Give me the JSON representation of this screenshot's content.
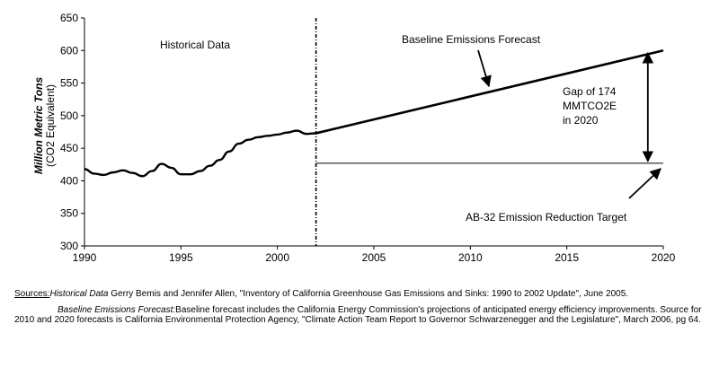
{
  "chart_data": {
    "type": "line",
    "ylabel": "Million Metric Tons",
    "ylabel_sub": "(CO2 Equivalent)",
    "xlim": [
      1990,
      2020
    ],
    "ylim": [
      300,
      650
    ],
    "x_ticks": [
      "1990",
      "1995",
      "2000",
      "2005",
      "2010",
      "2015",
      "2020"
    ],
    "y_ticks": [
      "300",
      "350",
      "400",
      "450",
      "500",
      "550",
      "600",
      "650"
    ],
    "grid": false,
    "series": [
      {
        "name": "Historical Data",
        "x": [
          1990,
          1990.5,
          1991,
          1991.5,
          1992,
          1992.5,
          1993,
          1993.5,
          1994,
          1994.5,
          1995,
          1995.5,
          1996,
          1996.5,
          1997,
          1997.5,
          1998,
          1998.5,
          1999,
          1999.5,
          2000,
          2000.5,
          2001,
          2001.5,
          2002
        ],
        "values": [
          418,
          411,
          409,
          413,
          416,
          412,
          407,
          415,
          426,
          420,
          410,
          410,
          415,
          423,
          432,
          445,
          457,
          463,
          467,
          469,
          471,
          474,
          477,
          472,
          473
        ]
      },
      {
        "name": "Baseline Emissions Forecast",
        "x": [
          2002,
          2020
        ],
        "values": [
          473,
          600
        ]
      },
      {
        "name": "AB-32 Emission Reduction Target",
        "x": [
          2002,
          2020
        ],
        "values": [
          427,
          427
        ]
      }
    ],
    "divider_x": 2002,
    "annotations": {
      "historical": "Historical Data",
      "baseline": "Baseline Emissions Forecast",
      "gap_lines": [
        "Gap of 174",
        "MMTCO2E",
        "in 2020"
      ],
      "target": "AB-32 Emission Reduction Target"
    }
  },
  "sources": {
    "label": "Sources:",
    "hist_title": "Historical Data",
    "hist_text": "Gerry Bemis and Jennifer Allen, \"Inventory of California Greenhouse Gas Emissions and Sinks: 1990 to 2002 Update\", June 2005.",
    "base_title": "Baseline Emissions Forecast:",
    "base_text": "Baseline forecast includes  the California Energy Commission's  projections of anticipated energy efficiency improvements. Source for 2010 and 2020 forecasts is California Environmental Protection Agency, \"Climate Action Team Report to Governor Schwarzenegger and the Legislature\", March 2006, pg 64."
  }
}
